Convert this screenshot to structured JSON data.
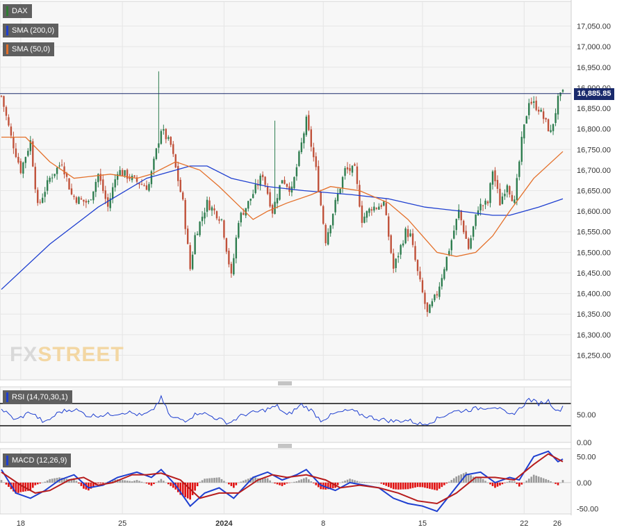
{
  "legends": {
    "main": [
      {
        "label": "DAX",
        "color": "#2e7d32"
      },
      {
        "label": "SMA (200,0)",
        "color": "#1e3fd0"
      },
      {
        "label": "SMA (50,0)",
        "color": "#e4702a"
      }
    ],
    "rsi": {
      "label": "RSI (14,70,30,1)",
      "color": "#1e3fd0"
    },
    "macd": {
      "label": "MACD (12,26,9)",
      "color": "#1e3fd0"
    }
  },
  "last_price_label": "16,885.85",
  "watermark": {
    "part1": "FX",
    "part2": "STREET"
  },
  "chart_data": [
    {
      "type": "candlestick",
      "instrument": "DAX",
      "x_labels": [
        "18",
        "25",
        "2024",
        "8",
        "15",
        "22",
        "26"
      ],
      "y_ticks": [
        "16,250.00",
        "16,300.00",
        "16,350.00",
        "16,400.00",
        "16,450.00",
        "16,500.00",
        "16,550.00",
        "16,600.00",
        "16,650.00",
        "16,700.00",
        "16,750.00",
        "16,800.00",
        "16,850.00",
        "16,900.00",
        "16,950.00",
        "17,000.00",
        "17,050.00"
      ],
      "ylim": [
        16190,
        17110
      ],
      "last_price": 16885.85,
      "close_path": [
        [
          0,
          16880
        ],
        [
          4,
          16780
        ],
        [
          8,
          16700
        ],
        [
          12,
          16770
        ],
        [
          15,
          16610
        ],
        [
          20,
          16680
        ],
        [
          25,
          16720
        ],
        [
          29,
          16640
        ],
        [
          31,
          16630
        ],
        [
          36,
          16620
        ],
        [
          40,
          16690
        ],
        [
          44,
          16610
        ],
        [
          48,
          16700
        ],
        [
          56,
          16672
        ],
        [
          60,
          16660
        ],
        [
          61,
          16665
        ],
        [
          66,
          16800
        ],
        [
          70,
          16760
        ],
        [
          75,
          16620
        ],
        [
          78,
          16460
        ],
        [
          80,
          16540
        ],
        [
          85,
          16620
        ],
        [
          91,
          16580
        ],
        [
          95,
          16440
        ],
        [
          98,
          16580
        ],
        [
          102,
          16620
        ],
        [
          108,
          16690
        ],
        [
          112,
          16600
        ],
        [
          116,
          16680
        ],
        [
          120,
          16650
        ],
        [
          126,
          16820
        ],
        [
          130,
          16700
        ],
        [
          134,
          16530
        ],
        [
          138,
          16620
        ],
        [
          142,
          16700
        ],
        [
          146,
          16700
        ],
        [
          149,
          16580
        ],
        [
          153,
          16610
        ],
        [
          155,
          16610
        ],
        [
          158,
          16620
        ],
        [
          162,
          16460
        ],
        [
          167,
          16550
        ],
        [
          169,
          16540
        ],
        [
          172,
          16450
        ],
        [
          176,
          16350
        ],
        [
          180,
          16400
        ],
        [
          186,
          16530
        ],
        [
          189,
          16600
        ],
        [
          193,
          16510
        ],
        [
          197,
          16610
        ],
        [
          201,
          16620
        ],
        [
          203,
          16700
        ],
        [
          206,
          16620
        ],
        [
          209,
          16670
        ],
        [
          210,
          16650
        ],
        [
          212,
          16620
        ],
        [
          215,
          16770
        ],
        [
          218,
          16870
        ],
        [
          222,
          16850
        ],
        [
          227,
          16790
        ],
        [
          230,
          16870
        ],
        [
          232,
          16885.85
        ]
      ],
      "spikes": [
        [
          65,
          16850,
          16940
        ],
        [
          113,
          16710,
          16820
        ],
        [
          134,
          16520,
          16560
        ]
      ],
      "series": [
        {
          "name": "SMA (200,0)",
          "color": "#1e3fd0",
          "points": [
            [
              0,
              16410
            ],
            [
              20,
              16520
            ],
            [
              40,
              16610
            ],
            [
              60,
              16680
            ],
            [
              78,
              16710
            ],
            [
              85,
              16710
            ],
            [
              95,
              16680
            ],
            [
              110,
              16660
            ],
            [
              125,
              16650
            ],
            [
              145,
              16640
            ],
            [
              160,
              16630
            ],
            [
              175,
              16610
            ],
            [
              190,
              16600
            ],
            [
              203,
              16590
            ],
            [
              210,
              16590
            ],
            [
              222,
              16610
            ],
            [
              232,
              16630
            ]
          ]
        },
        {
          "name": "SMA (50,0)",
          "color": "#e4702a",
          "points": [
            [
              0,
              16780
            ],
            [
              10,
              16780
            ],
            [
              20,
              16720
            ],
            [
              30,
              16680
            ],
            [
              45,
              16690
            ],
            [
              56,
              16680
            ],
            [
              62,
              16690
            ],
            [
              72,
              16720
            ],
            [
              82,
              16700
            ],
            [
              90,
              16660
            ],
            [
              97,
              16620
            ],
            [
              104,
              16580
            ],
            [
              110,
              16600
            ],
            [
              118,
              16620
            ],
            [
              128,
              16640
            ],
            [
              136,
              16660
            ],
            [
              148,
              16650
            ],
            [
              160,
              16620
            ],
            [
              168,
              16580
            ],
            [
              174,
              16540
            ],
            [
              180,
              16500
            ],
            [
              188,
              16490
            ],
            [
              196,
              16500
            ],
            [
              203,
              16540
            ],
            [
              210,
              16600
            ],
            [
              220,
              16680
            ],
            [
              232,
              16745
            ]
          ]
        }
      ]
    },
    {
      "type": "line",
      "indicator": "RSI (14,70,30,1)",
      "y_ticks": [
        "50.00",
        "0.00"
      ],
      "ylim": [
        0,
        100
      ],
      "levels": [
        70,
        30
      ],
      "series": [
        {
          "name": "RSI (14,70,30,1)",
          "color": "#1e3fd0",
          "points": [
            [
              0,
              60
            ],
            [
              6,
              40
            ],
            [
              12,
              55
            ],
            [
              18,
              35
            ],
            [
              24,
              55
            ],
            [
              30,
              60
            ],
            [
              36,
              48
            ],
            [
              44,
              50
            ],
            [
              52,
              55
            ],
            [
              58,
              48
            ],
            [
              62,
              55
            ],
            [
              66,
              80
            ],
            [
              70,
              45
            ],
            [
              76,
              40
            ],
            [
              82,
              55
            ],
            [
              88,
              45
            ],
            [
              94,
              35
            ],
            [
              100,
              50
            ],
            [
              106,
              55
            ],
            [
              110,
              60
            ],
            [
              114,
              65
            ],
            [
              118,
              48
            ],
            [
              124,
              68
            ],
            [
              128,
              58
            ],
            [
              132,
              40
            ],
            [
              138,
              52
            ],
            [
              144,
              58
            ],
            [
              150,
              48
            ],
            [
              156,
              42
            ],
            [
              162,
              38
            ],
            [
              168,
              40
            ],
            [
              174,
              32
            ],
            [
              180,
              42
            ],
            [
              186,
              55
            ],
            [
              192,
              58
            ],
            [
              198,
              62
            ],
            [
              204,
              65
            ],
            [
              210,
              48
            ],
            [
              214,
              60
            ],
            [
              218,
              78
            ],
            [
              222,
              70
            ],
            [
              226,
              75
            ],
            [
              230,
              55
            ],
            [
              232,
              65
            ]
          ]
        }
      ]
    },
    {
      "type": "line",
      "indicator": "MACD (12,26,9)",
      "y_ticks": [
        "50.00",
        "0.00",
        "-50.00"
      ],
      "ylim": [
        -60,
        65
      ],
      "series": [
        {
          "name": "MACD",
          "color": "#1e3fd0",
          "points": [
            [
              0,
              25
            ],
            [
              6,
              -20
            ],
            [
              12,
              -30
            ],
            [
              18,
              -15
            ],
            [
              24,
              5
            ],
            [
              30,
              15
            ],
            [
              36,
              -10
            ],
            [
              42,
              -5
            ],
            [
              48,
              10
            ],
            [
              56,
              20
            ],
            [
              62,
              10
            ],
            [
              66,
              25
            ],
            [
              72,
              -5
            ],
            [
              78,
              -45
            ],
            [
              84,
              -20
            ],
            [
              90,
              -10
            ],
            [
              96,
              -30
            ],
            [
              104,
              10
            ],
            [
              110,
              20
            ],
            [
              116,
              5
            ],
            [
              122,
              15
            ],
            [
              126,
              25
            ],
            [
              132,
              -5
            ],
            [
              138,
              -15
            ],
            [
              144,
              0
            ],
            [
              150,
              -5
            ],
            [
              156,
              -10
            ],
            [
              162,
              -30
            ],
            [
              168,
              -40
            ],
            [
              174,
              -45
            ],
            [
              180,
              -55
            ],
            [
              186,
              -20
            ],
            [
              192,
              15
            ],
            [
              198,
              20
            ],
            [
              204,
              0
            ],
            [
              210,
              10
            ],
            [
              214,
              5
            ],
            [
              220,
              50
            ],
            [
              226,
              60
            ],
            [
              230,
              40
            ],
            [
              232,
              45
            ]
          ]
        },
        {
          "name": "Signal",
          "color": "#b71c1c",
          "points": [
            [
              0,
              20
            ],
            [
              8,
              -5
            ],
            [
              14,
              -20
            ],
            [
              20,
              -15
            ],
            [
              28,
              5
            ],
            [
              34,
              10
            ],
            [
              40,
              -5
            ],
            [
              46,
              0
            ],
            [
              54,
              15
            ],
            [
              60,
              15
            ],
            [
              66,
              18
            ],
            [
              74,
              5
            ],
            [
              82,
              -30
            ],
            [
              90,
              -20
            ],
            [
              98,
              -20
            ],
            [
              106,
              5
            ],
            [
              112,
              15
            ],
            [
              118,
              10
            ],
            [
              126,
              15
            ],
            [
              134,
              5
            ],
            [
              140,
              -10
            ],
            [
              148,
              -5
            ],
            [
              156,
              -10
            ],
            [
              164,
              -20
            ],
            [
              172,
              -35
            ],
            [
              180,
              -40
            ],
            [
              188,
              -20
            ],
            [
              196,
              10
            ],
            [
              204,
              10
            ],
            [
              212,
              5
            ],
            [
              220,
              35
            ],
            [
              226,
              55
            ],
            [
              230,
              45
            ],
            [
              232,
              40
            ]
          ]
        }
      ]
    }
  ]
}
